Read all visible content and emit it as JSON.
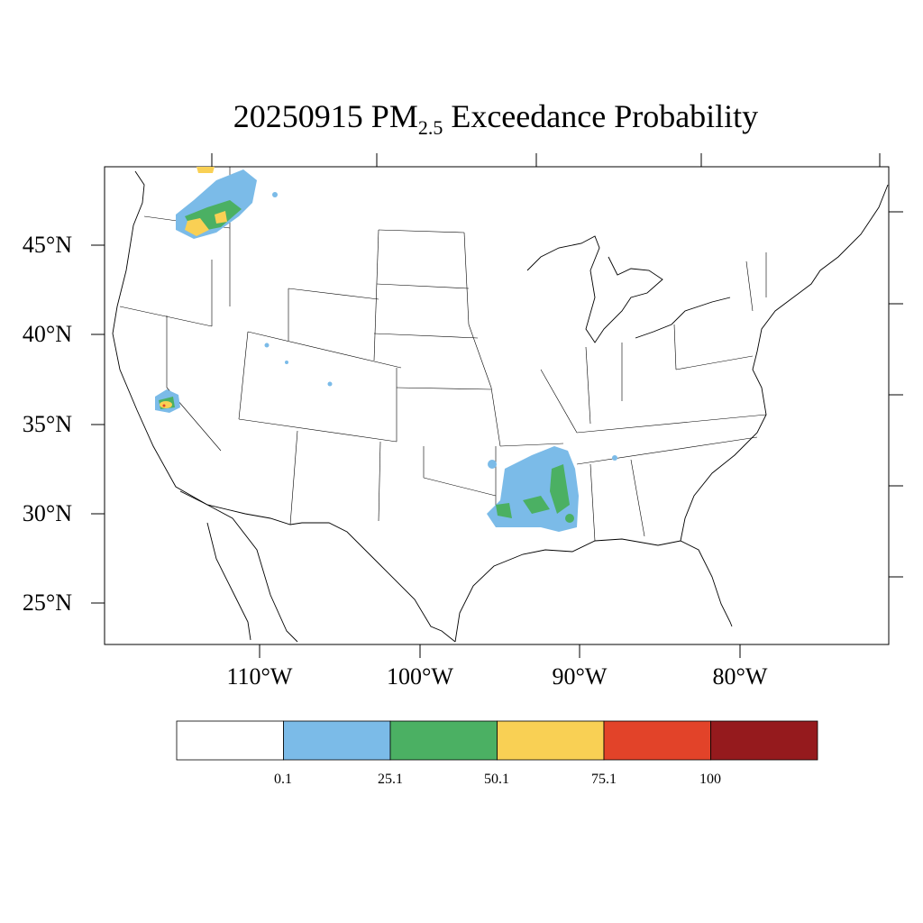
{
  "title": {
    "date": "20250915",
    "pm": "PM",
    "pm_sub": "2.5",
    "rest": "Exceedance Probability"
  },
  "lat_labels": [
    "45°N",
    "40°N",
    "35°N",
    "30°N",
    "25°N"
  ],
  "lon_labels": [
    "110°W",
    "100°W",
    "90°W",
    "80°W"
  ],
  "colorbar": {
    "labels": [
      "0.1",
      "25.1",
      "50.1",
      "75.1",
      "100"
    ],
    "colors": [
      "#ffffff",
      "#7bbbe8",
      "#4bb063",
      "#f9d054",
      "#e24329",
      "#951a1d"
    ]
  }
}
